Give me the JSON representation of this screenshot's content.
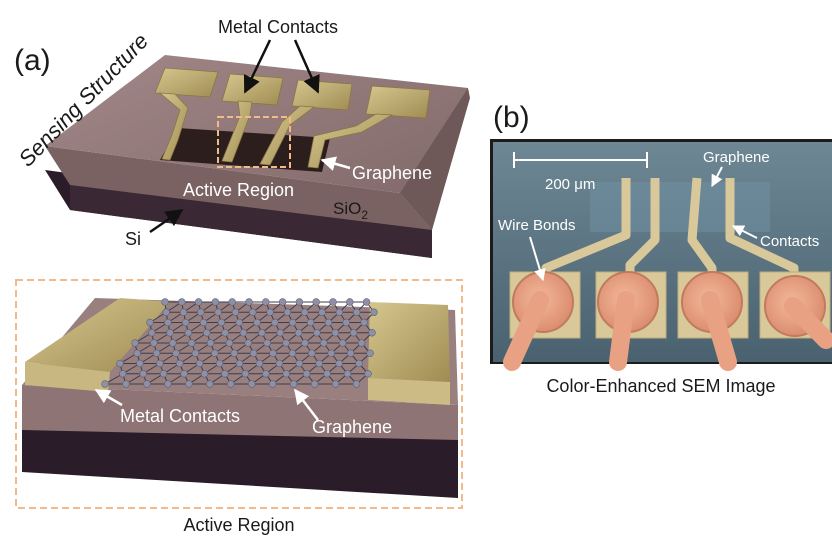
{
  "panel_a": {
    "tag": "(a)",
    "side_title": "Sensing Structure",
    "labels": {
      "metal_contacts": "Metal Contacts",
      "graphene": "Graphene",
      "active_region": "Active Region",
      "sio2_base": "SiO",
      "sio2_sub": "2",
      "si": "Si"
    }
  },
  "panel_a_zoom": {
    "metal_contacts": "Metal Contacts",
    "graphene": "Graphene",
    "caption": "Active Region"
  },
  "panel_b": {
    "tag": "(b)",
    "scale_bar": "200 μm",
    "graphene": "Graphene",
    "wire_bonds": "Wire Bonds",
    "contacts": "Contacts",
    "caption": "Color-Enhanced SEM Image"
  },
  "colors": {
    "sio2": "#8e7474",
    "si": "#2a1c28",
    "gold": "#c2b078",
    "graphene_dark": "#2b1e1c",
    "highlight_box": "#f2b98a",
    "sem_bg": "#5a7382",
    "sem_pad": "#d8c89a",
    "wire": "#e8a182"
  }
}
